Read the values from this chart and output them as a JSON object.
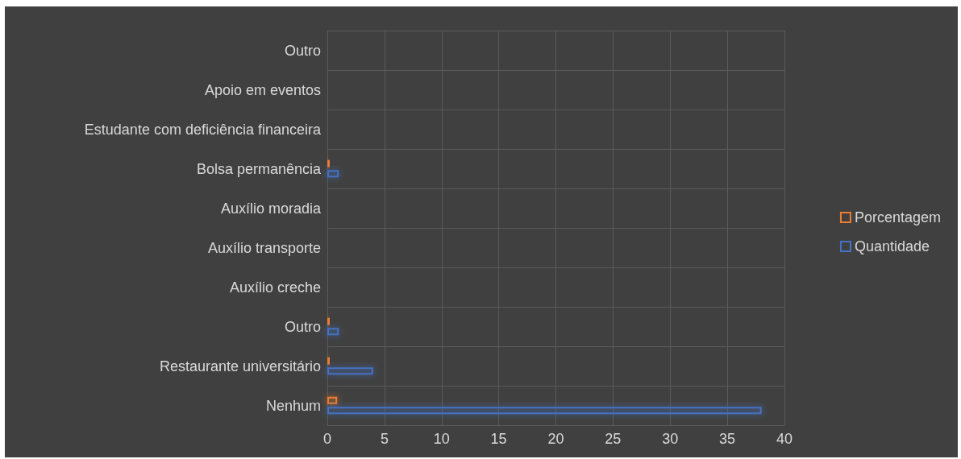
{
  "chart_data": {
    "type": "bar",
    "orientation": "horizontal",
    "categories": [
      "Outro",
      "Apoio em eventos",
      "Estudante com deficiência financeira",
      "Bolsa permanência",
      "Auxílio moradia",
      "Auxílio transporte",
      "Auxílio creche",
      "Outro",
      "Restaurante universitário",
      "Nenhum"
    ],
    "series": [
      {
        "name": "Porcentagem",
        "color": "#ed7d31",
        "values": [
          0,
          0,
          0,
          0.02,
          0,
          0,
          0,
          0.02,
          0.09,
          0.86
        ]
      },
      {
        "name": "Quantidade",
        "color": "#4472c4",
        "values": [
          0,
          0,
          0,
          1,
          0,
          0,
          0,
          1,
          4,
          38
        ]
      }
    ],
    "xlim": [
      0,
      40
    ],
    "xticks": [
      0,
      5,
      10,
      15,
      20,
      25,
      30,
      35,
      40
    ],
    "grid": true,
    "legend": "right"
  }
}
